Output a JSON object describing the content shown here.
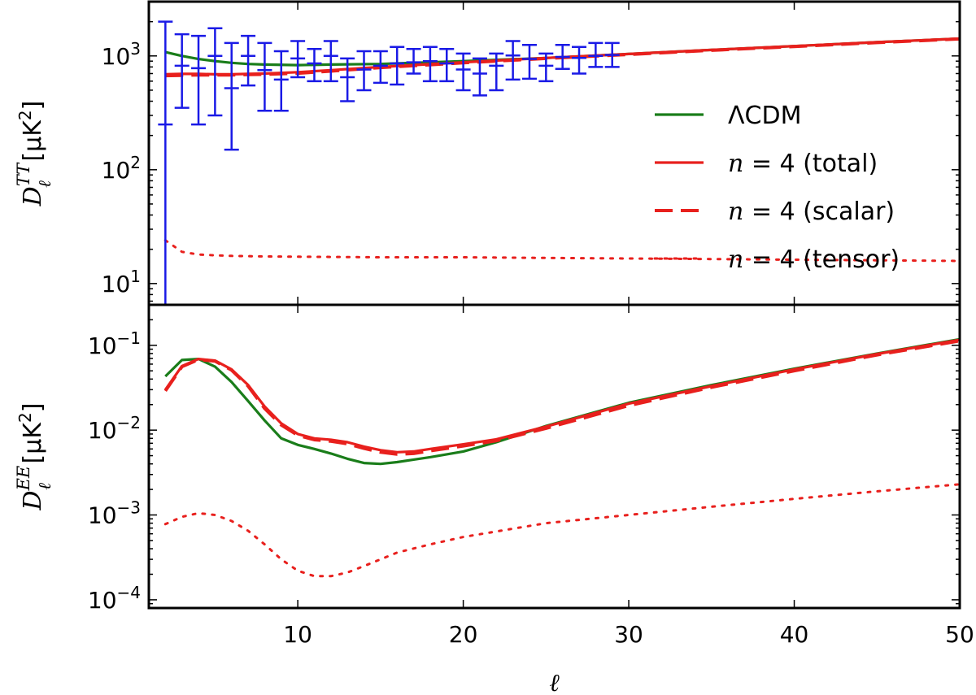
{
  "chart_data": [
    {
      "type": "line",
      "panel": "top",
      "ylabel": "D_ℓ^{TT} [μK²]",
      "ylabel_parts": {
        "symbol": "D",
        "sup": "TT",
        "sub": "ℓ",
        "unit": "[μK",
        "unit_sup": "2",
        "unit_close": "]"
      },
      "yscale": "log",
      "xlim": [
        1,
        50
      ],
      "ylim": [
        6.5,
        3000
      ],
      "ytick_labels": [
        {
          "value": 10,
          "base": "10",
          "exp": "1"
        },
        {
          "value": 100,
          "base": "10",
          "exp": "2"
        },
        {
          "value": 1000,
          "base": "10",
          "exp": "3"
        }
      ],
      "series": [
        {
          "name": "ΛCDM",
          "color": "#1a7d1a",
          "style": "solid",
          "x": [
            2,
            3,
            4,
            5,
            6,
            7,
            8,
            10,
            12,
            15,
            20,
            25,
            30,
            35,
            40,
            45,
            50
          ],
          "y": [
            1080,
            1000,
            940,
            900,
            870,
            850,
            840,
            830,
            840,
            850,
            900,
            960,
            1040,
            1130,
            1220,
            1320,
            1420
          ]
        },
        {
          "name": "n = 4 (total)",
          "color": "#e8201d",
          "style": "solid",
          "x": [
            2,
            3,
            4,
            5,
            6,
            7,
            8,
            10,
            12,
            15,
            20,
            25,
            30,
            35,
            40,
            45,
            50
          ],
          "y": [
            690,
            695,
            695,
            690,
            690,
            695,
            700,
            720,
            750,
            800,
            880,
            960,
            1040,
            1130,
            1220,
            1320,
            1420
          ]
        },
        {
          "name": "n = 4 (scalar)",
          "color": "#e8201d",
          "style": "dashed",
          "x": [
            2,
            3,
            4,
            5,
            6,
            7,
            8,
            10,
            12,
            15,
            20,
            25,
            30,
            35,
            40,
            45,
            50
          ],
          "y": [
            670,
            675,
            680,
            680,
            680,
            685,
            690,
            705,
            735,
            790,
            870,
            950,
            1030,
            1120,
            1210,
            1310,
            1410
          ]
        },
        {
          "name": "n = 4 (tensor)",
          "color": "#e8201d",
          "style": "dotted",
          "x": [
            2,
            3,
            4,
            5,
            6,
            8,
            10,
            15,
            20,
            25,
            30,
            35,
            40,
            45,
            50
          ],
          "y": [
            24,
            19,
            18,
            17.7,
            17.5,
            17.3,
            17.2,
            17,
            17,
            16.8,
            16.6,
            16.4,
            16.2,
            16,
            15.8
          ]
        }
      ],
      "errorbars": {
        "color": "#1a1ae6",
        "x": [
          2,
          3,
          4,
          5,
          6,
          7,
          8,
          9,
          10,
          11,
          12,
          13,
          14,
          15,
          16,
          17,
          18,
          19,
          20,
          21,
          22,
          23,
          24,
          25,
          26,
          27,
          28,
          29
        ],
        "y": [
          250,
          820,
          780,
          1000,
          520,
          1000,
          750,
          620,
          950,
          860,
          1000,
          650,
          760,
          820,
          860,
          880,
          900,
          860,
          760,
          700,
          820,
          1010,
          940,
          820,
          980,
          960,
          1000,
          1020
        ],
        "lo": [
          3,
          350,
          250,
          300,
          150,
          550,
          330,
          330,
          650,
          600,
          600,
          400,
          500,
          580,
          560,
          700,
          600,
          600,
          500,
          450,
          500,
          620,
          630,
          600,
          770,
          700,
          800,
          800
        ],
        "hi": [
          2000,
          1550,
          1500,
          1750,
          1300,
          1500,
          1300,
          1100,
          1350,
          1150,
          1350,
          950,
          1100,
          1100,
          1200,
          1150,
          1200,
          1150,
          1050,
          950,
          1050,
          1350,
          1250,
          1050,
          1250,
          1200,
          1300,
          1300
        ]
      }
    },
    {
      "type": "line",
      "panel": "bottom",
      "ylabel": "D_ℓ^{EE} [μK²]",
      "ylabel_parts": {
        "symbol": "D",
        "sup": "EE",
        "sub": "ℓ",
        "unit": "[μK",
        "unit_sup": "2",
        "unit_close": "]"
      },
      "xlabel": "ℓ",
      "yscale": "log",
      "xlim": [
        1,
        50
      ],
      "ylim": [
        8e-05,
        0.3
      ],
      "xtick_labels": [
        "10",
        "20",
        "30",
        "40",
        "50"
      ],
      "xtick_values": [
        10,
        20,
        30,
        40,
        50
      ],
      "ytick_labels": [
        {
          "value": 0.0001,
          "base": "10",
          "exp": "−4"
        },
        {
          "value": 0.001,
          "base": "10",
          "exp": "−3"
        },
        {
          "value": 0.01,
          "base": "10",
          "exp": "−2"
        },
        {
          "value": 0.1,
          "base": "10",
          "exp": "−1"
        }
      ],
      "series": [
        {
          "name": "ΛCDM",
          "color": "#1a7d1a",
          "style": "solid",
          "x": [
            2,
            3,
            4,
            5,
            6,
            7,
            8,
            9,
            10,
            11,
            12,
            13,
            14,
            15,
            16,
            17,
            18,
            20,
            22,
            25,
            30,
            35,
            40,
            45,
            50
          ],
          "y": [
            0.043,
            0.067,
            0.069,
            0.056,
            0.037,
            0.022,
            0.013,
            0.008,
            0.0067,
            0.006,
            0.0053,
            0.0046,
            0.0041,
            0.004,
            0.0042,
            0.0045,
            0.0048,
            0.0056,
            0.0072,
            0.0112,
            0.021,
            0.034,
            0.053,
            0.08,
            0.118
          ]
        },
        {
          "name": "n = 4 (total)",
          "color": "#e8201d",
          "style": "solid",
          "x": [
            2,
            3,
            4,
            5,
            6,
            7,
            8,
            9,
            10,
            11,
            12,
            13,
            14,
            15,
            16,
            17,
            18,
            20,
            22,
            25,
            30,
            35,
            40,
            45,
            50
          ],
          "y": [
            0.03,
            0.057,
            0.069,
            0.066,
            0.052,
            0.034,
            0.019,
            0.012,
            0.009,
            0.008,
            0.0077,
            0.0072,
            0.0064,
            0.0058,
            0.0055,
            0.0056,
            0.006,
            0.0068,
            0.0078,
            0.011,
            0.0205,
            0.033,
            0.052,
            0.079,
            0.116
          ]
        },
        {
          "name": "n = 4 (scalar)",
          "color": "#e8201d",
          "style": "dashed",
          "x": [
            2,
            3,
            4,
            5,
            6,
            7,
            8,
            9,
            10,
            11,
            12,
            13,
            14,
            15,
            16,
            17,
            18,
            20,
            22,
            25,
            30,
            35,
            40,
            45,
            50
          ],
          "y": [
            0.029,
            0.056,
            0.068,
            0.065,
            0.051,
            0.033,
            0.018,
            0.0115,
            0.0087,
            0.0077,
            0.0074,
            0.0069,
            0.0061,
            0.0055,
            0.0052,
            0.0053,
            0.0057,
            0.0065,
            0.0075,
            0.0105,
            0.0195,
            0.032,
            0.05,
            0.077,
            0.113
          ]
        },
        {
          "name": "n = 4 (tensor)",
          "color": "#e8201d",
          "style": "dotted",
          "x": [
            2,
            3,
            4,
            5,
            6,
            7,
            8,
            9,
            10,
            11,
            12,
            13,
            14,
            15,
            16,
            18,
            20,
            25,
            30,
            35,
            40,
            45,
            50
          ],
          "y": [
            0.00078,
            0.00095,
            0.00105,
            0.001,
            0.00085,
            0.00065,
            0.00045,
            0.0003,
            0.00022,
            0.00019,
            0.00019,
            0.00021,
            0.00025,
            0.0003,
            0.00036,
            0.00045,
            0.00055,
            0.0008,
            0.001,
            0.00125,
            0.00155,
            0.0019,
            0.0023
          ]
        }
      ]
    }
  ],
  "legend": {
    "placement": "top-right of top panel",
    "entries": [
      {
        "label": "ΛCDM",
        "label_parts": [
          "ΛCDM"
        ],
        "color": "#1a7d1a",
        "style": "solid"
      },
      {
        "label": "n = 4 (total)",
        "label_parts": [
          "n",
          " = 4 (total)"
        ],
        "color": "#e8201d",
        "style": "solid"
      },
      {
        "label": "n = 4 (scalar)",
        "label_parts": [
          "n",
          " = 4 (scalar)"
        ],
        "color": "#e8201d",
        "style": "dashed"
      },
      {
        "label": "n = 4 (tensor)",
        "label_parts": [
          "n",
          " = 4 (tensor)"
        ],
        "color": "#e8201d",
        "style": "dotted"
      }
    ]
  }
}
